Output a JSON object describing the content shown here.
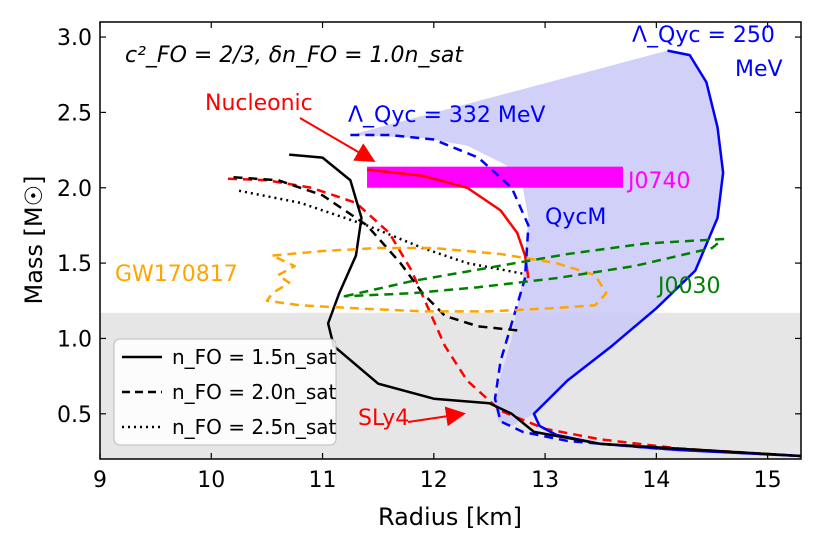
{
  "chart_data": {
    "type": "line",
    "title": "",
    "xlabel": "Radius [km]",
    "ylabel": "Mass [M☉]",
    "xlim": [
      9,
      15.3
    ],
    "ylim": [
      0.2,
      3.1
    ],
    "xticks": [
      9,
      10,
      11,
      12,
      13,
      14,
      15
    ],
    "yticks": [
      0.5,
      1.0,
      1.5,
      2.0,
      2.5,
      3.0
    ],
    "xtick_labels": [
      "9",
      "10",
      "11",
      "12",
      "13",
      "14",
      "15"
    ],
    "ytick_labels": [
      "0.5",
      "1.0",
      "1.5",
      "2.0",
      "2.5",
      "3.0"
    ],
    "shaded_band": {
      "y_from": 0.2,
      "y_to": 1.17,
      "color": "#e6e6e6"
    },
    "colors": {
      "black": "#000000",
      "red": "#ff0000",
      "blue": "#0000ff",
      "green": "#008000",
      "orange": "#ffa500",
      "magenta": "#ff00ff",
      "fill": "#c8c8f8"
    },
    "j0740_box": {
      "x_from": 11.4,
      "x_to": 13.7,
      "y_from": 2.0,
      "y_to": 2.14,
      "label": "J0740"
    },
    "qycm_region": {
      "label": "QycM",
      "polygon": [
        [
          11.25,
          2.35
        ],
        [
          14.1,
          2.91
        ],
        [
          14.3,
          2.88
        ],
        [
          14.45,
          2.7
        ],
        [
          14.55,
          2.4
        ],
        [
          14.6,
          2.1
        ],
        [
          14.55,
          1.8
        ],
        [
          14.35,
          1.45
        ],
        [
          14.0,
          1.2
        ],
        [
          13.6,
          0.95
        ],
        [
          13.2,
          0.72
        ],
        [
          12.9,
          0.5
        ],
        [
          12.7,
          0.42
        ],
        [
          12.58,
          0.45
        ],
        [
          12.55,
          0.55
        ],
        [
          12.6,
          0.75
        ],
        [
          12.7,
          1.0
        ],
        [
          12.8,
          1.4
        ],
        [
          12.85,
          1.8
        ],
        [
          12.8,
          2.0
        ],
        [
          12.65,
          2.15
        ],
        [
          12.3,
          2.28
        ],
        [
          11.9,
          2.33
        ]
      ]
    },
    "series": [
      {
        "name": "SLy4",
        "color": "#ff0000",
        "style": "dashed",
        "x": [
          10.15,
          10.5,
          10.9,
          11.3,
          11.6,
          11.8,
          11.95,
          12.1,
          12.3,
          12.6,
          13.0,
          13.5,
          14.2,
          15.3
        ],
        "y": [
          2.06,
          2.05,
          2.0,
          1.9,
          1.7,
          1.45,
          1.2,
          0.95,
          0.72,
          0.52,
          0.4,
          0.33,
          0.27,
          0.22
        ]
      },
      {
        "name": "Nucleonic",
        "color": "#ff0000",
        "style": "solid",
        "x": [
          11.4,
          11.9,
          12.3,
          12.6,
          12.75,
          12.82,
          12.85
        ],
        "y": [
          2.12,
          2.08,
          2.0,
          1.85,
          1.7,
          1.55,
          1.4
        ]
      },
      {
        "name": "Λ_Qyc = 332 MeV",
        "color": "#0000ff",
        "style": "dashed",
        "x": [
          11.25,
          11.6,
          12.0,
          12.4,
          12.7,
          12.85,
          12.82,
          12.7,
          12.6,
          12.55,
          12.6,
          12.8,
          13.2,
          14.0,
          15.3
        ],
        "y": [
          2.35,
          2.35,
          2.32,
          2.2,
          2.0,
          1.75,
          1.4,
          1.1,
          0.85,
          0.6,
          0.45,
          0.38,
          0.32,
          0.27,
          0.22
        ]
      },
      {
        "name": "Λ_Qyc = 250 MeV",
        "color": "#0000ff",
        "style": "solid",
        "x": [
          14.1,
          14.3,
          14.45,
          14.55,
          14.6,
          14.55,
          14.35,
          14.0,
          13.6,
          13.2,
          12.9,
          12.95,
          13.1,
          13.5,
          14.2,
          15.3
        ],
        "y": [
          2.91,
          2.88,
          2.7,
          2.4,
          2.1,
          1.8,
          1.45,
          1.2,
          0.95,
          0.72,
          0.5,
          0.42,
          0.36,
          0.3,
          0.26,
          0.22
        ]
      },
      {
        "name": "n_FO = 1.5n_sat",
        "color": "#000000",
        "style": "solid",
        "x": [
          10.7,
          11.0,
          11.25,
          11.35,
          11.3,
          11.15,
          11.05,
          11.1,
          11.5,
          12.0,
          12.5,
          12.7,
          12.9,
          13.5,
          15.3
        ],
        "y": [
          2.22,
          2.2,
          2.05,
          1.8,
          1.55,
          1.3,
          1.1,
          0.95,
          0.7,
          0.6,
          0.57,
          0.5,
          0.38,
          0.3,
          0.22
        ]
      },
      {
        "name": "n_FO = 2.0n_sat",
        "color": "#000000",
        "style": "dashed",
        "x": [
          10.2,
          10.6,
          11.0,
          11.4,
          11.7,
          11.9,
          12.1,
          12.4,
          12.8
        ],
        "y": [
          2.07,
          2.05,
          1.95,
          1.75,
          1.5,
          1.3,
          1.15,
          1.08,
          1.05
        ]
      },
      {
        "name": "n_FO = 2.5n_sat",
        "color": "#000000",
        "style": "dotted",
        "x": [
          10.25,
          10.8,
          11.4,
          11.9,
          12.3,
          12.8
        ],
        "y": [
          1.98,
          1.9,
          1.75,
          1.6,
          1.5,
          1.43
        ]
      },
      {
        "name": "GW170817",
        "color": "#ffa500",
        "style": "dashed",
        "closed": true,
        "x": [
          10.55,
          11.0,
          11.5,
          12.0,
          12.6,
          13.1,
          13.45,
          13.55,
          13.45,
          13.05,
          12.5,
          11.9,
          11.3,
          10.8,
          10.5,
          10.55,
          10.7,
          10.6,
          10.75,
          10.55
        ],
        "y": [
          1.55,
          1.58,
          1.6,
          1.6,
          1.56,
          1.5,
          1.42,
          1.3,
          1.22,
          1.2,
          1.18,
          1.18,
          1.2,
          1.22,
          1.25,
          1.3,
          1.37,
          1.42,
          1.48,
          1.55
        ]
      },
      {
        "name": "J0030",
        "color": "#008000",
        "style": "dashed",
        "closed": true,
        "x": [
          11.2,
          11.8,
          12.5,
          13.2,
          13.9,
          14.6,
          14.5,
          13.8,
          13.1,
          12.4,
          11.8,
          11.2
        ],
        "y": [
          1.28,
          1.38,
          1.47,
          1.56,
          1.63,
          1.66,
          1.6,
          1.48,
          1.4,
          1.34,
          1.3,
          1.28
        ]
      }
    ],
    "legend": {
      "placement": "lower-left",
      "entries": [
        {
          "label": "n_FO = 1.5n_sat",
          "style": "solid"
        },
        {
          "label": "n_FO = 2.0n_sat",
          "style": "dashed"
        },
        {
          "label": "n_FO = 2.5n_sat",
          "style": "dotted"
        }
      ]
    },
    "annotations": {
      "top_left": "c²_FO = 2/3, δn_FO = 1.0n_sat",
      "nucleonic": "Nucleonic",
      "lambda332": "Λ_Qyc = 332 MeV",
      "lambda250": "Λ_Qyc = 250",
      "mev": "MeV",
      "qycm": "QycM",
      "j0740": "J0740",
      "gw": "GW170817",
      "j0030": "J0030",
      "sly4": "SLy4"
    }
  }
}
